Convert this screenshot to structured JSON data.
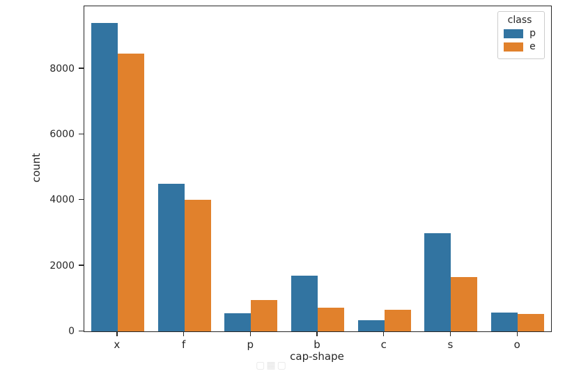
{
  "chart_data": {
    "type": "bar",
    "title": "",
    "xlabel": "cap-shape",
    "ylabel": "count",
    "categories": [
      "x",
      "f",
      "p",
      "b",
      "c",
      "s",
      "o"
    ],
    "series": [
      {
        "name": "p",
        "color": "#3274a1",
        "values": [
          9400,
          4500,
          550,
          1700,
          350,
          3000,
          580
        ]
      },
      {
        "name": "e",
        "color": "#e1812c",
        "values": [
          8450,
          4000,
          950,
          720,
          660,
          1650,
          530
        ]
      }
    ],
    "yticks": [
      0,
      2000,
      4000,
      6000,
      8000
    ],
    "ylim": [
      0,
      9900
    ],
    "grid": false,
    "legend": {
      "title": "class",
      "position": "upper right",
      "entries": [
        "p",
        "e"
      ]
    }
  },
  "watermark": {
    "text": "▢▦▢"
  }
}
